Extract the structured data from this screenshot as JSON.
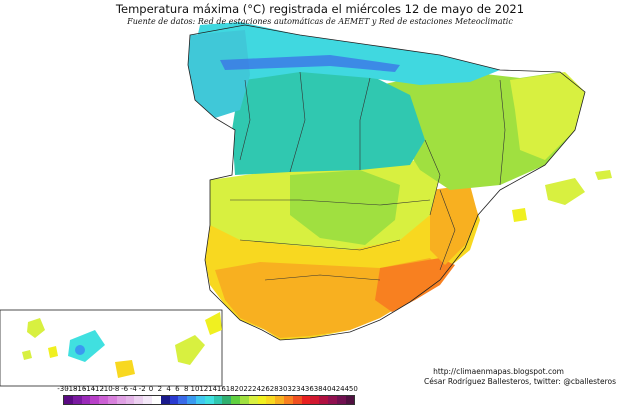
{
  "title": "Temperatura máxima (°C) registrada el miércoles 12 de mayo de 2021",
  "subtitle": "Fuente de datos: Red de estaciones automáticas de AEMET y Red de estaciones Meteoclimatic",
  "credits": {
    "url": "http://climaenmapas.blogspot.com",
    "author": "César Rodríguez Ballesteros, twitter: @cballesteros"
  },
  "legend": {
    "ticks": [
      "-30",
      "-18",
      "-16",
      "-14",
      "-12",
      "-10",
      "-8",
      "-6",
      "-4",
      "-2",
      "0",
      "2",
      "4",
      "6",
      "8",
      "10",
      "12",
      "14",
      "16",
      "18",
      "20",
      "22",
      "24",
      "26",
      "28",
      "30",
      "32",
      "34",
      "36",
      "38",
      "40",
      "42",
      "44",
      "50"
    ],
    "colors": [
      "#5a0a82",
      "#7a1aa0",
      "#9a2ab8",
      "#b840c8",
      "#cc60d4",
      "#d880dc",
      "#e0a0e4",
      "#e4b4e8",
      "#ecd0f0",
      "#f4e8f8",
      "#ffffff",
      "#1a1a8c",
      "#2a3ad0",
      "#3a6ae8",
      "#3a9af0",
      "#40c8f0",
      "#40e0e0",
      "#30c8b0",
      "#30b070",
      "#60d040",
      "#a0e040",
      "#d8f040",
      "#f0f020",
      "#f8d820",
      "#f8b020",
      "#f88020",
      "#f05020",
      "#e82020",
      "#d01830",
      "#b01040",
      "#901050",
      "#701050",
      "#501040"
    ]
  },
  "regions": {
    "north_coast": {
      "temp_range": "8-12",
      "color": "#40c8f0"
    },
    "northwest_plateau": {
      "temp_range": "12-16",
      "color": "#30c8b0"
    },
    "ebro_valley": {
      "temp_range": "18-22",
      "color": "#a0e040"
    },
    "central_plateau": {
      "temp_range": "18-22",
      "color": "#a0e040"
    },
    "south_guadalquivir": {
      "temp_range": "26-30",
      "color": "#f8b020"
    },
    "southeast": {
      "temp_range": "28-32",
      "color": "#f88020"
    },
    "east_coast": {
      "temp_range": "24-28",
      "color": "#f8d820"
    },
    "balearics": {
      "temp_range": "20-24",
      "color": "#d8f040"
    },
    "canaries": {
      "temp_range": "20-24",
      "color": "#d8f040"
    }
  }
}
